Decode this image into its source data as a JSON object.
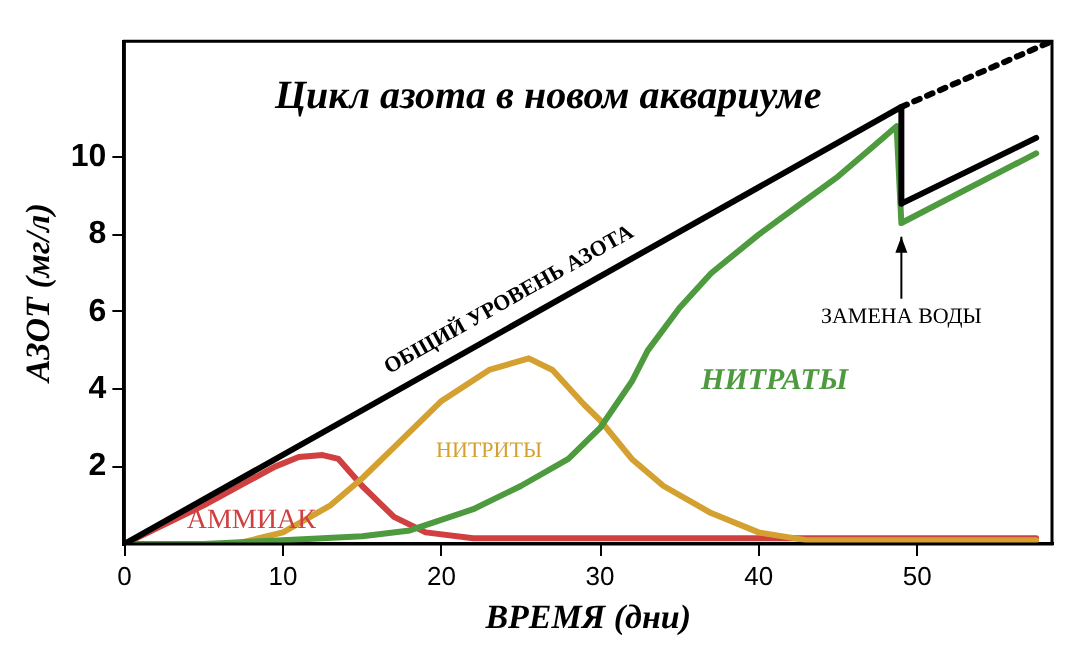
{
  "chart_data": {
    "type": "line",
    "title": "Цикл азота в новом аквариуме",
    "xlabel": "ВРЕМЯ (дни)",
    "ylabel": "АЗОТ (мг/л)",
    "xlim": [
      0,
      58.5
    ],
    "ylim": [
      0,
      13
    ],
    "xticks": [
      0,
      10,
      20,
      30,
      40,
      50
    ],
    "yticks": [
      2,
      4,
      6,
      8,
      10
    ],
    "grid": false,
    "legend": false,
    "marker": "none",
    "annotations": [
      {
        "text": "ЗАМЕНА ВОДЫ",
        "x": 49,
        "y": 8.1
      }
    ],
    "series": [
      {
        "name": "ОБЩИЙ УРОВЕНЬ АЗОТА",
        "color": "#000000",
        "x": [
          0,
          49,
          49,
          57.5
        ],
        "values": [
          0,
          11.3,
          8.8,
          10.5
        ]
      },
      {
        "color": "#000000",
        "line_style": "dotted",
        "x": [
          49,
          58.5
        ],
        "values": [
          11.3,
          13
        ]
      },
      {
        "name": "НИТРАТЫ",
        "color": "#4e9a3e",
        "x": [
          0,
          5,
          10,
          15,
          18,
          22,
          25,
          28,
          30,
          32,
          33,
          35,
          37,
          40,
          43,
          45,
          47,
          48.7,
          49,
          57.5
        ],
        "values": [
          0,
          0,
          0.1,
          0.2,
          0.35,
          0.9,
          1.5,
          2.2,
          3.0,
          4.2,
          5.0,
          6.1,
          7.0,
          8.0,
          8.9,
          9.5,
          10.2,
          10.8,
          8.3,
          10.1
        ]
      },
      {
        "name": "НИТРИТЫ",
        "color": "#d4a030",
        "x": [
          0,
          7,
          10,
          13,
          15,
          17,
          20,
          23,
          25.5,
          27,
          29,
          30,
          32,
          34,
          37,
          40,
          43,
          57.5
        ],
        "values": [
          0,
          0,
          0.3,
          1.0,
          1.7,
          2.5,
          3.7,
          4.5,
          4.8,
          4.5,
          3.6,
          3.2,
          2.2,
          1.5,
          0.8,
          0.3,
          0.1,
          0.1
        ]
      },
      {
        "name": "АММИАК",
        "color": "#d04040",
        "x": [
          0,
          5,
          9.5,
          11,
          12.5,
          13.5,
          15,
          17,
          19,
          22,
          57.5
        ],
        "values": [
          0,
          1.0,
          2.0,
          2.25,
          2.3,
          2.2,
          1.5,
          0.7,
          0.3,
          0.15,
          0.15
        ]
      }
    ]
  }
}
